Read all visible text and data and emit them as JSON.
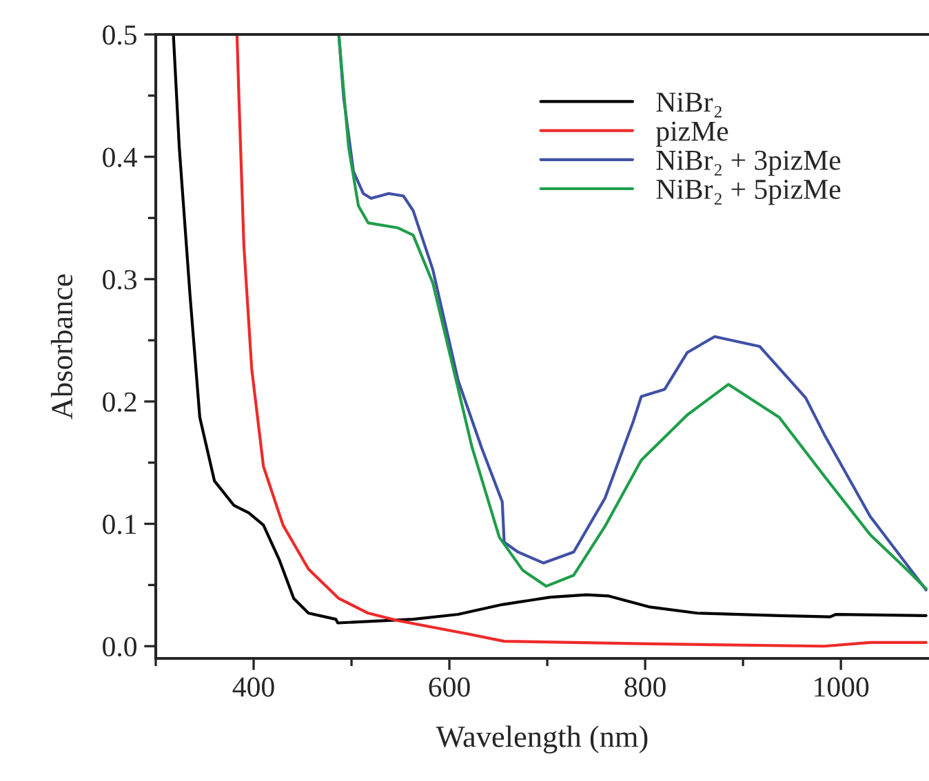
{
  "chart_data": {
    "type": "line",
    "xlabel": "Wavelength (nm)",
    "ylabel": "Absorbance",
    "xlim": [
      300,
      1090
    ],
    "xticks": [
      400,
      600,
      800,
      1000
    ],
    "ylim": [
      -0.01,
      0.5
    ],
    "yticks": [
      {
        "value": 0,
        "label": "0.0"
      },
      0.1,
      0.2,
      0.3,
      0.4,
      0.5
    ],
    "legend": "top right",
    "grid": false,
    "line_style": "solid",
    "marker": "none",
    "series": [
      {
        "name": "NiBr₂",
        "color": "#000000",
        "x": [
          318,
          324,
          335,
          345,
          360,
          380,
          395,
          410,
          426,
          441,
          456,
          484,
          486,
          563,
          609,
          654,
          703,
          740,
          763,
          805,
          853,
          937,
          989,
          995,
          1087
        ],
        "values": [
          0.5,
          0.408,
          0.287,
          0.187,
          0.135,
          0.115,
          0.109,
          0.099,
          0.071,
          0.039,
          0.027,
          0.022,
          0.019,
          0.022,
          0.026,
          0.034,
          0.04,
          0.042,
          0.041,
          0.032,
          0.027,
          0.025,
          0.024,
          0.026,
          0.025
        ]
      },
      {
        "name": "pizMe",
        "color": "#ee2a2a",
        "x": [
          383,
          385,
          390,
          398,
          410,
          430,
          456,
          487,
          517,
          547,
          619,
          656,
          796,
          983,
          1030,
          1087
        ],
        "values": [
          0.5,
          0.448,
          0.328,
          0.227,
          0.147,
          0.099,
          0.063,
          0.039,
          0.027,
          0.021,
          0.01,
          0.004,
          0.002,
          0.0,
          0.003,
          0.003
        ]
      },
      {
        "name": "NiBr₂ + 3pizMe",
        "color": "#3f51a5",
        "x": [
          487,
          492,
          502,
          512,
          520,
          538,
          553,
          563,
          583,
          609,
          633,
          654,
          656,
          670,
          696,
          727,
          759,
          788,
          796,
          820,
          843,
          871,
          917,
          964,
          983,
          1030,
          1068,
          1087
        ],
        "values": [
          0.5,
          0.448,
          0.388,
          0.37,
          0.366,
          0.37,
          0.368,
          0.356,
          0.308,
          0.217,
          0.162,
          0.118,
          0.085,
          0.077,
          0.068,
          0.077,
          0.121,
          0.184,
          0.204,
          0.21,
          0.24,
          0.253,
          0.245,
          0.203,
          0.173,
          0.106,
          0.066,
          0.046
        ]
      },
      {
        "name": "NiBr₂ + 5pizMe",
        "color": "#1f9e4a",
        "x": [
          487,
          497,
          507,
          517,
          547,
          563,
          583,
          607,
          623,
          651,
          675,
          699,
          727,
          759,
          796,
          843,
          885,
          937,
          983,
          1030,
          1068,
          1087
        ],
        "values": [
          0.5,
          0.408,
          0.36,
          0.346,
          0.342,
          0.336,
          0.297,
          0.217,
          0.163,
          0.089,
          0.062,
          0.049,
          0.058,
          0.098,
          0.152,
          0.189,
          0.214,
          0.187,
          0.139,
          0.091,
          0.062,
          0.047
        ]
      }
    ]
  }
}
